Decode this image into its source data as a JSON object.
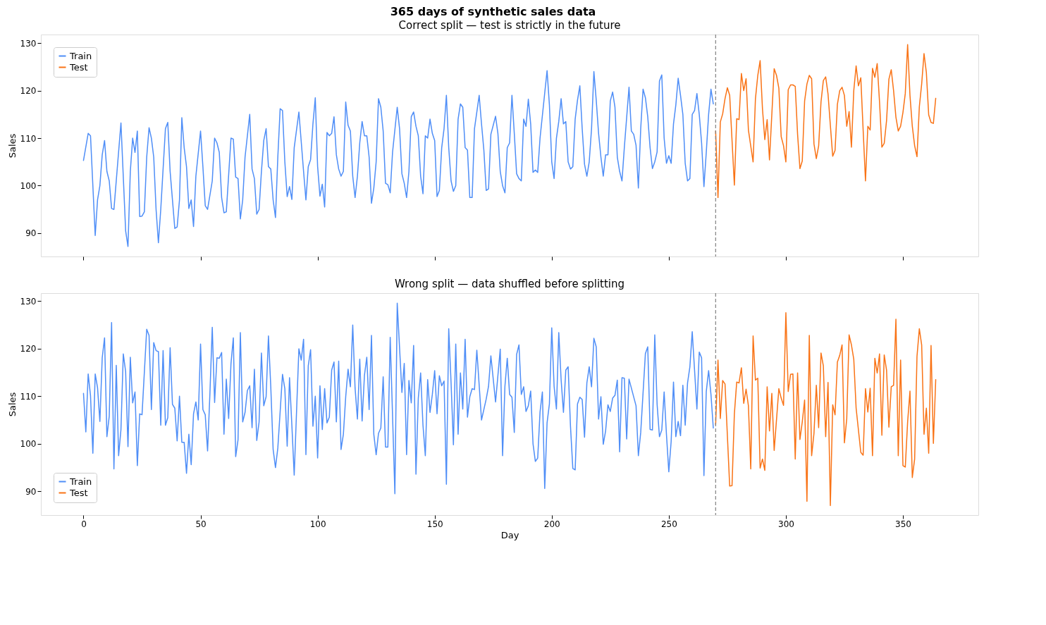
{
  "chart_data": [
    {
      "type": "line",
      "title": "365 days of synthetic sales data",
      "subtitle": "Correct split — test is strictly in the future",
      "ylabel": "Sales",
      "xlim": [
        -18.2,
        382.2
      ],
      "xticks": [
        0,
        50,
        100,
        150,
        200,
        250,
        300,
        350
      ],
      "ylim": [
        85.1,
        131.8
      ],
      "yticks": [
        90,
        100,
        110,
        120,
        130
      ],
      "tick_labels": "y",
      "legend": "top left",
      "grid": false,
      "line_style": "solid",
      "ref_lines": [
        {
          "axis": "x",
          "value": 270,
          "color": "#808080",
          "line_style": "dashed"
        }
      ],
      "series": [
        {
          "name": "Train",
          "color": "#4f8ef7",
          "x": [
            0,
            2,
            3,
            5,
            6,
            7,
            8,
            9,
            10,
            11,
            12,
            13,
            16,
            18,
            19,
            20,
            21,
            22,
            23,
            24,
            25,
            26,
            27,
            28,
            29,
            30,
            31,
            32,
            33,
            35,
            36,
            37,
            39,
            40,
            41,
            42,
            43,
            44,
            45,
            46,
            47,
            48,
            50,
            51,
            52,
            53,
            55,
            56,
            57,
            58,
            59,
            60,
            61,
            63,
            64,
            65,
            66,
            67,
            68,
            69,
            71,
            72,
            73,
            74,
            75,
            76,
            77,
            78,
            79,
            80,
            81,
            82,
            83,
            84,
            85,
            86,
            87,
            88,
            89,
            90,
            92,
            94,
            95,
            96,
            97,
            98,
            99,
            100,
            101,
            102,
            103,
            104,
            105,
            106,
            107,
            108,
            109,
            110,
            111,
            112,
            113,
            114,
            115,
            116,
            117,
            118,
            119,
            120,
            121,
            122,
            123,
            124,
            125,
            126,
            127,
            128,
            129,
            130,
            131,
            132,
            134,
            135,
            136,
            137,
            138,
            139,
            140,
            141,
            142,
            143,
            144,
            145,
            146,
            147,
            148,
            149,
            150,
            151,
            152,
            153,
            154,
            155,
            156,
            157,
            158,
            159,
            160,
            161,
            162,
            163,
            164,
            165,
            166,
            167,
            169,
            170,
            171,
            172,
            173,
            174,
            176,
            177,
            178,
            179,
            180,
            181,
            182,
            183,
            184,
            185,
            186,
            187,
            188,
            189,
            190,
            191,
            192,
            193,
            194,
            195,
            197,
            198,
            199,
            200,
            201,
            202,
            203,
            204,
            205,
            206,
            207,
            208,
            209,
            210,
            211,
            212,
            213,
            214,
            215,
            216,
            217,
            218,
            219,
            220,
            221,
            222,
            223,
            224,
            225,
            226,
            227,
            228,
            229,
            230,
            231,
            233,
            234,
            235,
            236,
            237,
            238,
            239,
            240,
            241,
            242,
            243,
            244,
            245,
            246,
            247,
            248,
            249,
            250,
            251,
            252,
            253,
            254,
            255,
            256,
            257,
            258,
            259,
            260,
            261,
            262,
            263,
            264,
            265,
            266,
            267,
            268,
            269
          ],
          "values": [
            105.3,
            111,
            110.5,
            89.5,
            97,
            100,
            106.5,
            109.5,
            103,
            101,
            95.2,
            95,
            113.2,
            90.5,
            87.2,
            103,
            110,
            107,
            111.5,
            93.5,
            93.6,
            94.5,
            106,
            112.2,
            110,
            106,
            95,
            88,
            95,
            112,
            113.3,
            103,
            91,
            91.3,
            97,
            114.3,
            108,
            104,
            95.2,
            97,
            91.4,
            102,
            111.5,
            104,
            95.8,
            95,
            101,
            110,
            109,
            107,
            97.5,
            94.3,
            94.5,
            110,
            109.8,
            101.8,
            101.5,
            93,
            97,
            106,
            115,
            103.5,
            101.5,
            94,
            95,
            103,
            109.5,
            112,
            104,
            103.5,
            97,
            93.3,
            106,
            116.2,
            115.8,
            105,
            97.7,
            99.8,
            97.1,
            108,
            115.5,
            103,
            97,
            104,
            105.5,
            113,
            118.5,
            104,
            97.8,
            100.3,
            95.5,
            111.2,
            110.5,
            111,
            114.5,
            106.5,
            103.5,
            102,
            103,
            117.6,
            112.7,
            111.5,
            102,
            97.5,
            102,
            109,
            113.5,
            110.5,
            110.5,
            106,
            96.3,
            99.5,
            105,
            118.3,
            116.5,
            111.5,
            100.5,
            100.2,
            98.5,
            107,
            116.5,
            112,
            102.5,
            100.5,
            97.5,
            103,
            114.5,
            115.5,
            112.5,
            110.5,
            102,
            98.3,
            110.5,
            110,
            114,
            111,
            109.5,
            97.7,
            99,
            108,
            112,
            119,
            108,
            101,
            98.8,
            100,
            114,
            117.2,
            116.5,
            108,
            107.5,
            97.5,
            97.5,
            112,
            119,
            113,
            107.5,
            99,
            99.3,
            110.8,
            114.6,
            111,
            103,
            100,
            98.5,
            108,
            109,
            119,
            111,
            102.5,
            101.5,
            101,
            114,
            112.5,
            118.2,
            113,
            102.8,
            103.3,
            102.8,
            110,
            119.5,
            124.2,
            117,
            105,
            101.5,
            110,
            113.5,
            118.3,
            113,
            113.5,
            105,
            103.5,
            104,
            114,
            118,
            121,
            112,
            104.5,
            102,
            105,
            112,
            124,
            118,
            111,
            106,
            102,
            106.5,
            106.5,
            117.8,
            119.7,
            116.5,
            106,
            103,
            101,
            108,
            120.7,
            111.5,
            110.8,
            108.5,
            99.5,
            112,
            120.3,
            118.5,
            114.5,
            108,
            103.6,
            105,
            107.1,
            122,
            123.3,
            110,
            104.7,
            106.3,
            104.7,
            113,
            117,
            122.6,
            119,
            115,
            104.7,
            101,
            101.5,
            115,
            115.8,
            119.4,
            115,
            109,
            99.8,
            107,
            115,
            120.3,
            117.2
          ]
        },
        {
          "name": "Test",
          "color": "#f97316",
          "x": [
            270,
            271,
            272,
            273,
            274,
            275,
            276,
            278,
            279,
            280,
            281,
            282,
            283,
            284,
            286,
            287,
            288,
            289,
            290,
            291,
            292,
            293,
            295,
            296,
            297,
            298,
            299,
            300,
            301,
            302,
            303,
            304,
            305,
            306,
            307,
            308,
            309,
            310,
            311,
            312,
            313,
            314,
            315,
            316,
            317,
            318,
            319,
            320,
            321,
            322,
            323,
            324,
            325,
            326,
            327,
            328,
            329,
            330,
            331,
            332,
            333,
            334,
            335,
            336,
            337,
            338,
            339,
            340,
            341,
            342,
            343,
            344,
            345,
            346,
            347,
            348,
            349,
            350,
            351,
            352,
            353,
            354,
            355,
            356,
            357,
            358,
            359,
            360,
            361,
            362,
            363,
            364
          ],
          "values": [
            111.5,
            97.5,
            113.4,
            115.1,
            118.3,
            120.6,
            119,
            100.1,
            114.1,
            113.9,
            123.6,
            120,
            122.5,
            111.7,
            105,
            118.3,
            123.2,
            126.3,
            116.2,
            109.7,
            113.9,
            105.4,
            124.6,
            123.2,
            120.5,
            110.3,
            108.4,
            105,
            120.2,
            121.2,
            121.2,
            120.9,
            110.8,
            103.6,
            105.2,
            117.8,
            121.4,
            123.2,
            122.5,
            108.8,
            105.7,
            108.4,
            117.6,
            122.1,
            122.9,
            119.3,
            112.7,
            106.2,
            107.4,
            117.1,
            120,
            120.7,
            119,
            112.5,
            115.6,
            108.1,
            120,
            125.2,
            121,
            122.7,
            111.7,
            101,
            112.5,
            111.7,
            124.7,
            122.8,
            125.7,
            117.6,
            108.1,
            108.9,
            113.7,
            122.4,
            124.4,
            120,
            114.4,
            111.5,
            112.5,
            115.4,
            119.4,
            129.7,
            119,
            112.5,
            108.4,
            106.1,
            116.6,
            121.4,
            127.8,
            123.8,
            114.9,
            113.3,
            113.1,
            118.4
          ]
        }
      ]
    },
    {
      "type": "line",
      "title": "Wrong split — data shuffled before splitting",
      "xlabel": "Day",
      "ylabel": "Sales",
      "xlim": [
        -18.2,
        382.2
      ],
      "xticks": [
        0,
        50,
        100,
        150,
        200,
        250,
        300,
        350
      ],
      "ylim": [
        85.0,
        131.7
      ],
      "yticks": [
        90,
        100,
        110,
        120,
        130
      ],
      "legend": "bottom left",
      "grid": false,
      "line_style": "solid",
      "ref_lines": [
        {
          "axis": "x",
          "value": 270,
          "color": "#808080",
          "line_style": "dashed"
        }
      ],
      "series": [
        {
          "name": "Train",
          "color": "#4f8ef7",
          "x": [
            0,
            1,
            2,
            3,
            4,
            5,
            6,
            7,
            8,
            9,
            10,
            11,
            12,
            13,
            14,
            15,
            16,
            17,
            18,
            19,
            20,
            21,
            22,
            23,
            24,
            25,
            27,
            28,
            29,
            30,
            31,
            32,
            33,
            34,
            35,
            36,
            37,
            38,
            39,
            40,
            41,
            42,
            43,
            44,
            45,
            46,
            47,
            48,
            49,
            50,
            51,
            52,
            53,
            54,
            55,
            56,
            57,
            58,
            59,
            60,
            61,
            62,
            63,
            64,
            65,
            66,
            67,
            68,
            69,
            70,
            71,
            72,
            73,
            74,
            75,
            76,
            77,
            78,
            79,
            80,
            81,
            82,
            83,
            84,
            85,
            86,
            87,
            88,
            89,
            90,
            91,
            92,
            93,
            94,
            95,
            96,
            97,
            98,
            99,
            100,
            101,
            102,
            103,
            104,
            105,
            106,
            107,
            108,
            109,
            110,
            111,
            112,
            113,
            114,
            115,
            116,
            117,
            118,
            119,
            120,
            121,
            122,
            123,
            124,
            125,
            126,
            127,
            128,
            129,
            130,
            131,
            133,
            134,
            136,
            137,
            138,
            139,
            140,
            141,
            142,
            143,
            144,
            145,
            146,
            147,
            148,
            149,
            150,
            151,
            152,
            153,
            154,
            155,
            156,
            157,
            158,
            159,
            160,
            161,
            162,
            163,
            164,
            165,
            166,
            167,
            168,
            170,
            172,
            173,
            174,
            176,
            178,
            179,
            180,
            181,
            182,
            183,
            184,
            185,
            186,
            187,
            188,
            189,
            190,
            191,
            192,
            193,
            194,
            195,
            196,
            197,
            198,
            199,
            200,
            201,
            202,
            203,
            204,
            205,
            206,
            207,
            208,
            209,
            210,
            211,
            212,
            213,
            214,
            215,
            216,
            217,
            218,
            219,
            220,
            221,
            222,
            223,
            224,
            225,
            226,
            227,
            228,
            229,
            230,
            231,
            232,
            233,
            236,
            237,
            238,
            240,
            241,
            242,
            243,
            244,
            245,
            246,
            247,
            248,
            249,
            250,
            251,
            252,
            253,
            254,
            255,
            256,
            257,
            258,
            259,
            260,
            262,
            263,
            264,
            265,
            266,
            267,
            268,
            269
          ],
          "values": [
            110.6,
            102.5,
            114.7,
            110.1,
            98,
            114.7,
            111.8,
            104.7,
            118.1,
            122.3,
            101.5,
            105.8,
            125.5,
            94.7,
            116.5,
            97.5,
            103,
            118.9,
            115.2,
            99.4,
            118.2,
            108.6,
            110.9,
            95.4,
            106.3,
            106.1,
            124.1,
            122.8,
            107.2,
            121.3,
            119.6,
            119.4,
            103.9,
            119.6,
            103.9,
            105.5,
            120.2,
            108.3,
            107.5,
            100.6,
            110,
            100.3,
            100.3,
            93.8,
            102,
            95.6,
            106.3,
            108.8,
            105,
            121,
            107.2,
            106.1,
            98.5,
            110.6,
            124.5,
            108.7,
            118.1,
            118,
            119.2,
            102,
            113.6,
            105.3,
            116.9,
            122.3,
            97.3,
            100.8,
            123.4,
            104.6,
            106.6,
            111.2,
            112.2,
            103.4,
            115.7,
            100.7,
            104.6,
            119.1,
            108,
            109.9,
            122.7,
            111.9,
            98.8,
            95,
            99.1,
            106.8,
            114.6,
            111.6,
            99.5,
            113.9,
            103.9,
            93.4,
            106.8,
            120,
            117.6,
            122,
            97.7,
            116.4,
            119.8,
            103.7,
            110,
            97,
            112.2,
            103,
            111.6,
            104.4,
            105.6,
            115.5,
            117.2,
            104.6,
            117.4,
            98.8,
            102,
            109.9,
            115.7,
            112,
            125,
            111.7,
            105.2,
            117.8,
            104.8,
            114.4,
            118.2,
            107.2,
            122.8,
            102,
            97.7,
            102.2,
            103.3,
            114.1,
            99.3,
            99.3,
            122.4,
            89.5,
            129.6,
            110.8,
            116.9,
            97.7,
            113.3,
            108.6,
            120.7,
            93.6,
            109.6,
            114.9,
            103.9,
            97.5,
            113.5,
            106.6,
            110.4,
            115.4,
            106.3,
            114.3,
            112.2,
            113.2,
            91.5,
            124.2,
            112.8,
            99.8,
            121,
            102,
            114.9,
            107.3,
            122,
            105.6,
            109.9,
            111.6,
            111.4,
            119.7,
            105,
            109.4,
            112.1,
            118.5,
            108.8,
            119.9,
            97.5,
            112.1,
            118,
            110.4,
            109.8,
            102.4,
            118.8,
            120.8,
            110.4,
            112,
            106.8,
            108,
            111.1,
            100,
            96.3,
            97,
            106.7,
            110.9,
            90.6,
            104.4,
            108.4,
            124.4,
            112.1,
            107.3,
            123.4,
            113.5,
            106.6,
            115.5,
            116.2,
            103.7,
            94.8,
            94.5,
            108.4,
            109.8,
            109.3,
            101.4,
            112.8,
            116.2,
            112,
            122.2,
            120.4,
            105.2,
            109.9,
            99.9,
            102.7,
            108.2,
            106.8,
            109.6,
            110.2,
            113.4,
            98.3,
            113.9,
            113.8,
            101,
            113.6,
            108,
            97.5,
            102.4,
            119,
            120.4,
            103,
            102.9,
            122.9,
            108.3,
            101.5,
            102.9,
            110.9,
            101.9,
            94.1,
            100.5,
            113,
            101.5,
            104.7,
            101.7,
            112.3,
            103.9,
            112.8,
            116.2,
            123.6,
            107.3,
            119.3,
            118.1,
            93.3,
            111,
            115.4,
            110.4,
            103.3
          ]
        },
        {
          "name": "Test",
          "color": "#f97316",
          "x": [
            270,
            271,
            272,
            273,
            274,
            276,
            277,
            278,
            279,
            280,
            281,
            282,
            283,
            284,
            285,
            286,
            287,
            288,
            289,
            290,
            291,
            292,
            293,
            294,
            295,
            297,
            298,
            299,
            300,
            301,
            302,
            303,
            304,
            305,
            306,
            307,
            308,
            309,
            310,
            311,
            312,
            313,
            314,
            315,
            316,
            317,
            318,
            319,
            320,
            321,
            322,
            323,
            324,
            325,
            326,
            327,
            328,
            329,
            330,
            332,
            333,
            334,
            335,
            336,
            337,
            338,
            339,
            340,
            341,
            342,
            343,
            344,
            345,
            346,
            347,
            348,
            349,
            350,
            351,
            352,
            353,
            354,
            355,
            356,
            357,
            358,
            359,
            360,
            361,
            362,
            363,
            364
          ],
          "values": [
            104,
            117.6,
            105.3,
            113.3,
            112.6,
            91.1,
            91.2,
            106.3,
            113,
            112.8,
            116,
            108.5,
            111.5,
            108,
            94.7,
            122.7,
            113.4,
            113.8,
            94.9,
            96.8,
            94.4,
            112,
            102.7,
            110.6,
            98.6,
            111.6,
            109.6,
            108.1,
            127.6,
            111,
            114.6,
            114.7,
            96.8,
            114.9,
            100.9,
            104.6,
            109.2,
            87.9,
            122.8,
            97.5,
            102.2,
            112.3,
            103.4,
            119.1,
            116.4,
            101.5,
            112.9,
            87,
            108.2,
            106.1,
            117.2,
            118.6,
            120.8,
            100.2,
            105.3,
            122.9,
            120.8,
            117.8,
            107.5,
            98.2,
            97.6,
            111.6,
            106.7,
            111.7,
            97.5,
            118,
            114.9,
            118.9,
            101.8,
            118.7,
            115.5,
            103.5,
            112,
            112.3,
            126.2,
            97.5,
            117.6,
            95.4,
            95.1,
            104.6,
            111.1,
            92.9,
            96.8,
            118.4,
            124.2,
            120.8,
            102,
            107.5,
            98,
            120.7,
            100.1,
            113.5
          ]
        }
      ]
    }
  ]
}
